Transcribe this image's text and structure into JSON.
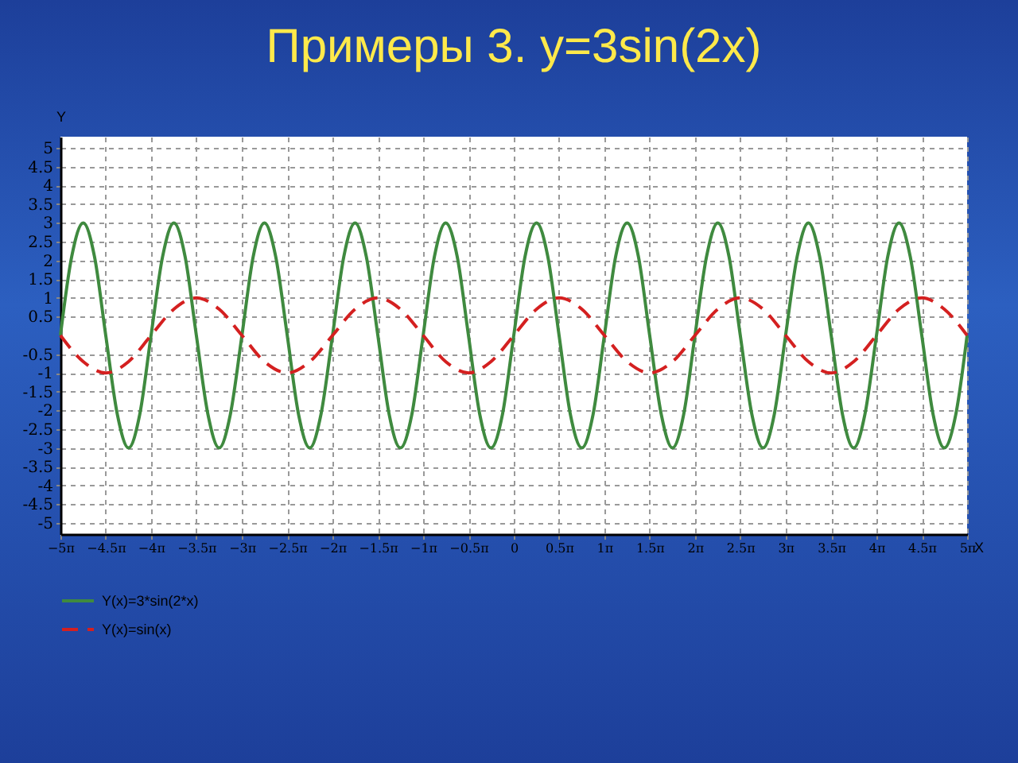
{
  "chart_data": {
    "type": "line",
    "title": "Примеры 3. y=3sin(2x)",
    "xlabel": "X",
    "ylabel": "Y",
    "xlim": [
      -15.71,
      15.71
    ],
    "ylim": [
      -5.3,
      5.3
    ],
    "xticks": [
      {
        "value": -15.71,
        "label": "−5π"
      },
      {
        "value": -14.14,
        "label": "−4.5π"
      },
      {
        "value": -12.57,
        "label": "−4π"
      },
      {
        "value": -11,
        "label": "−3.5π"
      },
      {
        "value": -9.42,
        "label": "−3π"
      },
      {
        "value": -7.85,
        "label": "−2.5π"
      },
      {
        "value": -6.28,
        "label": "−2π"
      },
      {
        "value": -4.71,
        "label": "−1.5π"
      },
      {
        "value": -3.14,
        "label": "−1π"
      },
      {
        "value": -1.57,
        "label": "−0.5π"
      },
      {
        "value": 0,
        "label": "0"
      },
      {
        "value": 1.57,
        "label": "0.5π"
      },
      {
        "value": 3.14,
        "label": "1π"
      },
      {
        "value": 4.71,
        "label": "1.5π"
      },
      {
        "value": 6.28,
        "label": "2π"
      },
      {
        "value": 7.85,
        "label": "2.5π"
      },
      {
        "value": 9.42,
        "label": "3π"
      },
      {
        "value": 11,
        "label": "3.5π"
      },
      {
        "value": 12.57,
        "label": "4π"
      },
      {
        "value": 14.14,
        "label": "4.5π"
      },
      {
        "value": 15.71,
        "label": "5π"
      }
    ],
    "yticks": [
      -5,
      -4.5,
      -4,
      -3.5,
      -3,
      -2.5,
      -2,
      -1.5,
      -1,
      -0.5,
      0.5,
      1,
      1.5,
      2,
      2.5,
      3,
      3.5,
      4,
      4.5,
      5
    ],
    "grid": true,
    "legend": "bottom",
    "marker": "none",
    "series": [
      {
        "name": "Y(x)=3*sin(2*x)",
        "color": "#3f8a3f",
        "line_style": "solid",
        "x": [
          -15.71,
          -15.32,
          -14.92,
          -14.53,
          -14.14,
          -13.74,
          -13.35,
          -12.96,
          -12.57,
          -12.17,
          -11.78,
          -11.39,
          -11,
          -10.6,
          -10.21,
          -9.82,
          -9.42,
          -9.03,
          -8.64,
          -8.25,
          -7.85,
          -7.46,
          -7.07,
          -6.68,
          -6.28,
          -5.89,
          -5.5,
          -5.11,
          -4.71,
          -4.32,
          -3.93,
          -3.53,
          -3.14,
          -2.75,
          -2.36,
          -1.96,
          -1.57,
          -1.18,
          -0.79,
          -0.39,
          0,
          0.39,
          0.79,
          1.18,
          1.57,
          1.96,
          2.36,
          2.75,
          3.14,
          3.53,
          3.93,
          4.32,
          4.71,
          5.11,
          5.5,
          5.89,
          6.28,
          6.68,
          7.07,
          7.46,
          7.85,
          8.25,
          8.64,
          9.03,
          9.42,
          9.82,
          10.21,
          10.6,
          11,
          11.39,
          11.78,
          12.17,
          12.57,
          12.96,
          13.35,
          13.74,
          14.14,
          14.53,
          14.92,
          15.32,
          15.71
        ],
        "values": [
          0,
          2.1,
          3,
          2.1,
          0,
          -2.1,
          -3,
          -2.1,
          0,
          2.1,
          3,
          2.1,
          0,
          -2.1,
          -3,
          -2.1,
          0,
          2.1,
          3,
          2.1,
          0,
          -2.1,
          -3,
          -2.1,
          0,
          2.1,
          3,
          2.1,
          0,
          -2.1,
          -3,
          -2.1,
          0,
          2.1,
          3,
          2.1,
          0,
          -2.1,
          -3,
          -2.1,
          0,
          2.1,
          3,
          2.1,
          0,
          -2.1,
          -3,
          -2.1,
          0,
          2.1,
          3,
          2.1,
          0,
          -2.1,
          -3,
          -2.1,
          0,
          2.1,
          3,
          2.1,
          0,
          -2.1,
          -3,
          -2.1,
          0,
          2.1,
          3,
          2.1,
          0,
          -2.1,
          -3,
          -2.1,
          0,
          2.1,
          3,
          2.1,
          0,
          -2.1,
          -3,
          -2.1,
          0
        ]
      },
      {
        "name": "Y(x)=sin(x)",
        "color": "#d42020",
        "line_style": "dashed",
        "x": [
          -15.71,
          -14.92,
          -14.14,
          -13.35,
          -12.57,
          -11.78,
          -11,
          -10.21,
          -9.42,
          -8.64,
          -7.85,
          -7.07,
          -6.28,
          -5.5,
          -4.71,
          -3.93,
          -3.14,
          -2.36,
          -1.57,
          -0.79,
          0,
          0.79,
          1.57,
          2.36,
          3.14,
          3.93,
          4.71,
          5.5,
          6.28,
          7.07,
          7.85,
          8.64,
          9.42,
          10.21,
          11,
          11.78,
          12.57,
          13.35,
          14.14,
          14.92,
          15.71
        ],
        "values": [
          0,
          -0.7,
          -1,
          -0.7,
          0,
          0.7,
          1,
          0.7,
          0,
          -0.7,
          -1,
          -0.7,
          0,
          0.7,
          1,
          0.7,
          0,
          -0.7,
          -1,
          -0.7,
          0,
          0.7,
          1,
          0.7,
          0,
          -0.7,
          -1,
          -0.7,
          0,
          0.7,
          1,
          0.7,
          0,
          -0.7,
          -1,
          -0.7,
          0,
          0.7,
          1,
          0.7,
          0
        ]
      }
    ]
  }
}
